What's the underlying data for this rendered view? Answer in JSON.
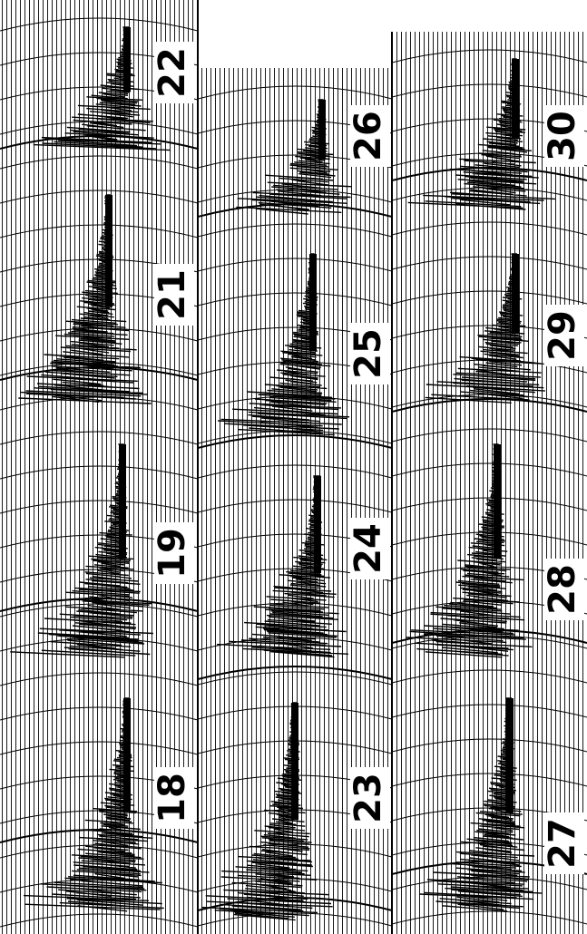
{
  "panels": [
    {
      "label": "22"
    },
    {
      "label": "21"
    },
    {
      "label": "19"
    },
    {
      "label": "18"
    },
    {
      "label": "26"
    },
    {
      "label": "25"
    },
    {
      "label": "24"
    },
    {
      "label": "23"
    },
    {
      "label": "30"
    },
    {
      "label": "29"
    },
    {
      "label": "28"
    },
    {
      "label": "27"
    }
  ]
}
